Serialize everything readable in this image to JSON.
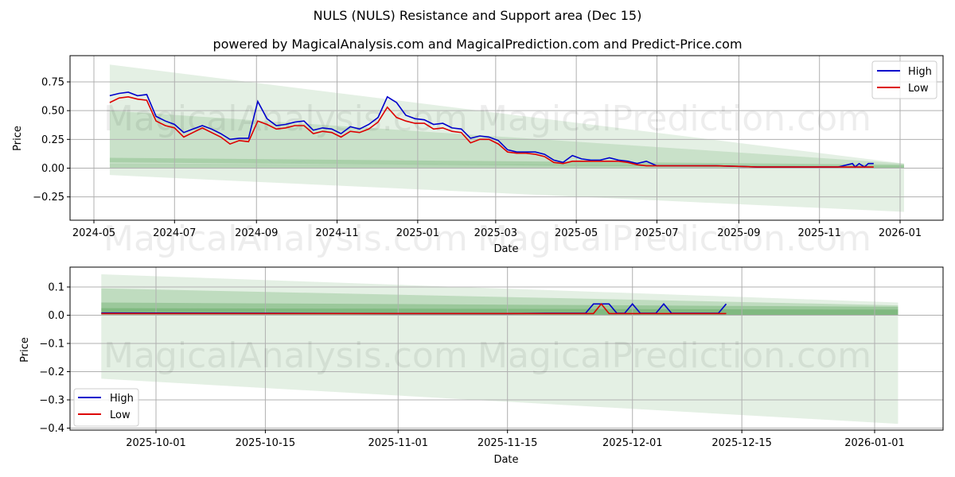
{
  "header": {
    "title": "NULS (NULS) Resistance and Support area (Dec 15)",
    "subtitle": "powered by MagicalAnalysis.com and MagicalPrediction.com and Predict-Price.com"
  },
  "watermarks": [
    "MagicalAnalysis.com",
    "MagicalPrediction.com"
  ],
  "colors": {
    "high": "#0000cc",
    "low": "#dd0000",
    "band": "#2e8b2e",
    "grid": "#b0b0b0"
  },
  "legend": {
    "high_label": "High",
    "low_label": "Low"
  },
  "chart_data": [
    {
      "type": "line",
      "title": "NULS (NULS) Resistance and Support area (Dec 15)",
      "xlabel": "Date",
      "ylabel": "Price",
      "ylim": [
        -0.44,
        0.98
      ],
      "xticks": [
        "2024-05",
        "2024-07",
        "2024-09",
        "2024-11",
        "2025-01",
        "2025-03",
        "2025-05",
        "2025-07",
        "2025-09",
        "2025-11",
        "2026-01"
      ],
      "yticks": [
        "0.75",
        "0.50",
        "0.25",
        "0.00",
        "−0.25"
      ],
      "grid": true,
      "legend_position": "upper right",
      "series": [
        {
          "name": "High",
          "x": [
            "2024-05-13",
            "2024-05-20",
            "2024-05-27",
            "2024-06-03",
            "2024-06-10",
            "2024-06-17",
            "2024-06-24",
            "2024-07-01",
            "2024-07-08",
            "2024-07-15",
            "2024-07-22",
            "2024-07-29",
            "2024-08-05",
            "2024-08-12",
            "2024-08-19",
            "2024-08-26",
            "2024-09-02",
            "2024-09-09",
            "2024-09-16",
            "2024-09-23",
            "2024-09-30",
            "2024-10-07",
            "2024-10-14",
            "2024-10-21",
            "2024-10-28",
            "2024-11-04",
            "2024-11-11",
            "2024-11-18",
            "2024-11-25",
            "2024-12-02",
            "2024-12-09",
            "2024-12-16",
            "2024-12-23",
            "2024-12-30",
            "2025-01-06",
            "2025-01-13",
            "2025-01-20",
            "2025-01-27",
            "2025-02-03",
            "2025-02-10",
            "2025-02-17",
            "2025-02-24",
            "2025-03-03",
            "2025-03-10",
            "2025-03-17",
            "2025-03-24",
            "2025-03-31",
            "2025-04-07",
            "2025-04-14",
            "2025-04-21",
            "2025-04-28",
            "2025-05-05",
            "2025-05-12",
            "2025-05-19",
            "2025-05-26",
            "2025-06-02",
            "2025-06-09",
            "2025-06-16",
            "2025-06-23",
            "2025-07-01",
            "2025-07-15",
            "2025-08-01",
            "2025-08-15",
            "2025-09-01",
            "2025-09-15",
            "2025-10-01",
            "2025-10-15",
            "2025-11-01",
            "2025-11-15",
            "2025-11-26",
            "2025-11-28",
            "2025-12-01",
            "2025-12-05",
            "2025-12-08",
            "2025-12-12"
          ],
          "values": [
            0.63,
            0.65,
            0.66,
            0.63,
            0.64,
            0.45,
            0.41,
            0.38,
            0.31,
            0.34,
            0.37,
            0.34,
            0.3,
            0.25,
            0.26,
            0.26,
            0.58,
            0.43,
            0.37,
            0.38,
            0.4,
            0.41,
            0.33,
            0.35,
            0.34,
            0.3,
            0.36,
            0.34,
            0.38,
            0.44,
            0.62,
            0.57,
            0.46,
            0.43,
            0.42,
            0.38,
            0.39,
            0.35,
            0.34,
            0.26,
            0.28,
            0.27,
            0.24,
            0.16,
            0.14,
            0.14,
            0.14,
            0.12,
            0.07,
            0.05,
            0.11,
            0.08,
            0.07,
            0.07,
            0.09,
            0.07,
            0.06,
            0.04,
            0.06,
            0.02,
            0.02,
            0.02,
            0.02,
            0.015,
            0.01,
            0.01,
            0.01,
            0.01,
            0.01,
            0.04,
            0.01,
            0.04,
            0.01,
            0.04,
            0.04
          ]
        },
        {
          "name": "Low",
          "x": [
            "2024-05-13",
            "2024-05-20",
            "2024-05-27",
            "2024-06-03",
            "2024-06-10",
            "2024-06-17",
            "2024-06-24",
            "2024-07-01",
            "2024-07-08",
            "2024-07-15",
            "2024-07-22",
            "2024-07-29",
            "2024-08-05",
            "2024-08-12",
            "2024-08-19",
            "2024-08-26",
            "2024-09-02",
            "2024-09-09",
            "2024-09-16",
            "2024-09-23",
            "2024-09-30",
            "2024-10-07",
            "2024-10-14",
            "2024-10-21",
            "2024-10-28",
            "2024-11-04",
            "2024-11-11",
            "2024-11-18",
            "2024-11-25",
            "2024-12-02",
            "2024-12-09",
            "2024-12-16",
            "2024-12-23",
            "2024-12-30",
            "2025-01-06",
            "2025-01-13",
            "2025-01-20",
            "2025-01-27",
            "2025-02-03",
            "2025-02-10",
            "2025-02-17",
            "2025-02-24",
            "2025-03-03",
            "2025-03-10",
            "2025-03-17",
            "2025-03-24",
            "2025-03-31",
            "2025-04-07",
            "2025-04-14",
            "2025-04-21",
            "2025-04-28",
            "2025-05-05",
            "2025-05-12",
            "2025-05-19",
            "2025-05-26",
            "2025-06-02",
            "2025-06-09",
            "2025-06-16",
            "2025-06-23",
            "2025-07-01",
            "2025-07-15",
            "2025-08-01",
            "2025-08-15",
            "2025-09-01",
            "2025-09-15",
            "2025-10-01",
            "2025-10-15",
            "2025-11-01",
            "2025-11-15",
            "2025-11-26",
            "2025-11-28",
            "2025-12-01",
            "2025-12-05",
            "2025-12-08",
            "2025-12-12"
          ],
          "values": [
            0.57,
            0.61,
            0.62,
            0.6,
            0.59,
            0.41,
            0.37,
            0.35,
            0.27,
            0.31,
            0.35,
            0.31,
            0.27,
            0.21,
            0.24,
            0.23,
            0.41,
            0.38,
            0.34,
            0.35,
            0.37,
            0.37,
            0.3,
            0.32,
            0.31,
            0.27,
            0.32,
            0.31,
            0.34,
            0.4,
            0.53,
            0.44,
            0.41,
            0.39,
            0.39,
            0.34,
            0.35,
            0.32,
            0.31,
            0.22,
            0.25,
            0.25,
            0.21,
            0.14,
            0.13,
            0.13,
            0.12,
            0.1,
            0.05,
            0.04,
            0.06,
            0.06,
            0.06,
            0.06,
            0.06,
            0.06,
            0.05,
            0.03,
            0.02,
            0.02,
            0.02,
            0.02,
            0.02,
            0.015,
            0.01,
            0.01,
            0.01,
            0.01,
            0.01,
            0.01,
            0.01,
            0.01,
            0.01,
            0.01,
            0.01
          ]
        }
      ],
      "bands": [
        {
          "label": "outer",
          "x_start": "2024-05-13",
          "x_end": "2026-01-04",
          "upper": [
            0.9,
            0.04
          ],
          "lower": [
            -0.06,
            -0.38
          ],
          "opacity": 0.13
        },
        {
          "label": "mid",
          "x_start": "2024-05-13",
          "x_end": "2026-01-04",
          "upper": [
            0.5,
            0.04
          ],
          "lower": [
            0.0,
            0.0
          ],
          "opacity": 0.15
        },
        {
          "label": "inner",
          "x_start": "2024-05-13",
          "x_end": "2026-01-04",
          "upper": [
            0.09,
            0.03
          ],
          "lower": [
            0.05,
            0.0
          ],
          "opacity": 0.2
        },
        {
          "label": "core",
          "x_start": "2024-05-13",
          "x_end": "2026-01-04",
          "upper": [
            0.04,
            0.02
          ],
          "lower": [
            0.0,
            0.0
          ],
          "opacity": 0.12
        }
      ]
    },
    {
      "type": "line",
      "xlabel": "Date",
      "ylabel": "Price",
      "ylim": [
        -0.41,
        0.17
      ],
      "xticks": [
        "2025-10-01",
        "2025-10-15",
        "2025-11-01",
        "2025-11-15",
        "2025-12-01",
        "2025-12-15",
        "2026-01-01"
      ],
      "yticks": [
        "0.1",
        "0.0",
        "−0.1",
        "−0.2",
        "−0.3",
        "−0.4"
      ],
      "grid": true,
      "legend_position": "lower left",
      "series": [
        {
          "name": "High",
          "x": [
            "2025-09-24",
            "2025-10-15",
            "2025-11-01",
            "2025-11-15",
            "2025-11-20",
            "2025-11-25",
            "2025-11-26",
            "2025-11-27",
            "2025-11-28",
            "2025-11-29",
            "2025-11-30",
            "2025-12-01",
            "2025-12-02",
            "2025-12-03",
            "2025-12-04",
            "2025-12-05",
            "2025-12-06",
            "2025-12-12",
            "2025-12-13"
          ],
          "values": [
            0.008,
            0.007,
            0.006,
            0.006,
            0.007,
            0.007,
            0.04,
            0.04,
            0.04,
            0.007,
            0.007,
            0.04,
            0.007,
            0.007,
            0.007,
            0.04,
            0.007,
            0.007,
            0.04
          ]
        },
        {
          "name": "Low",
          "x": [
            "2025-09-24",
            "2025-10-15",
            "2025-11-01",
            "2025-11-15",
            "2025-11-20",
            "2025-11-25",
            "2025-11-26",
            "2025-11-27",
            "2025-11-28",
            "2025-11-29",
            "2025-12-01",
            "2025-12-05",
            "2025-12-12",
            "2025-12-13"
          ],
          "values": [
            0.006,
            0.006,
            0.006,
            0.006,
            0.006,
            0.006,
            0.006,
            0.04,
            0.006,
            0.006,
            0.006,
            0.006,
            0.006,
            0.006
          ]
        }
      ],
      "bands": [
        {
          "label": "outer",
          "x_start": "2025-09-24",
          "x_end": "2026-01-04",
          "upper": [
            0.145,
            0.045
          ],
          "lower": [
            -0.225,
            -0.385
          ],
          "opacity": 0.13
        },
        {
          "label": "mid",
          "x_start": "2025-09-24",
          "x_end": "2026-01-04",
          "upper": [
            0.095,
            0.035
          ],
          "lower": [
            0.0,
            0.0
          ],
          "opacity": 0.2
        },
        {
          "label": "inner",
          "x_start": "2025-09-24",
          "x_end": "2026-01-04",
          "upper": [
            0.045,
            0.03
          ],
          "lower": [
            0.0,
            0.0
          ],
          "opacity": 0.25
        },
        {
          "label": "core",
          "x_start": "2025-09-24",
          "x_end": "2026-01-04",
          "upper": [
            0.025,
            0.02
          ],
          "lower": [
            0.005,
            0.0
          ],
          "opacity": 0.25
        }
      ]
    }
  ]
}
